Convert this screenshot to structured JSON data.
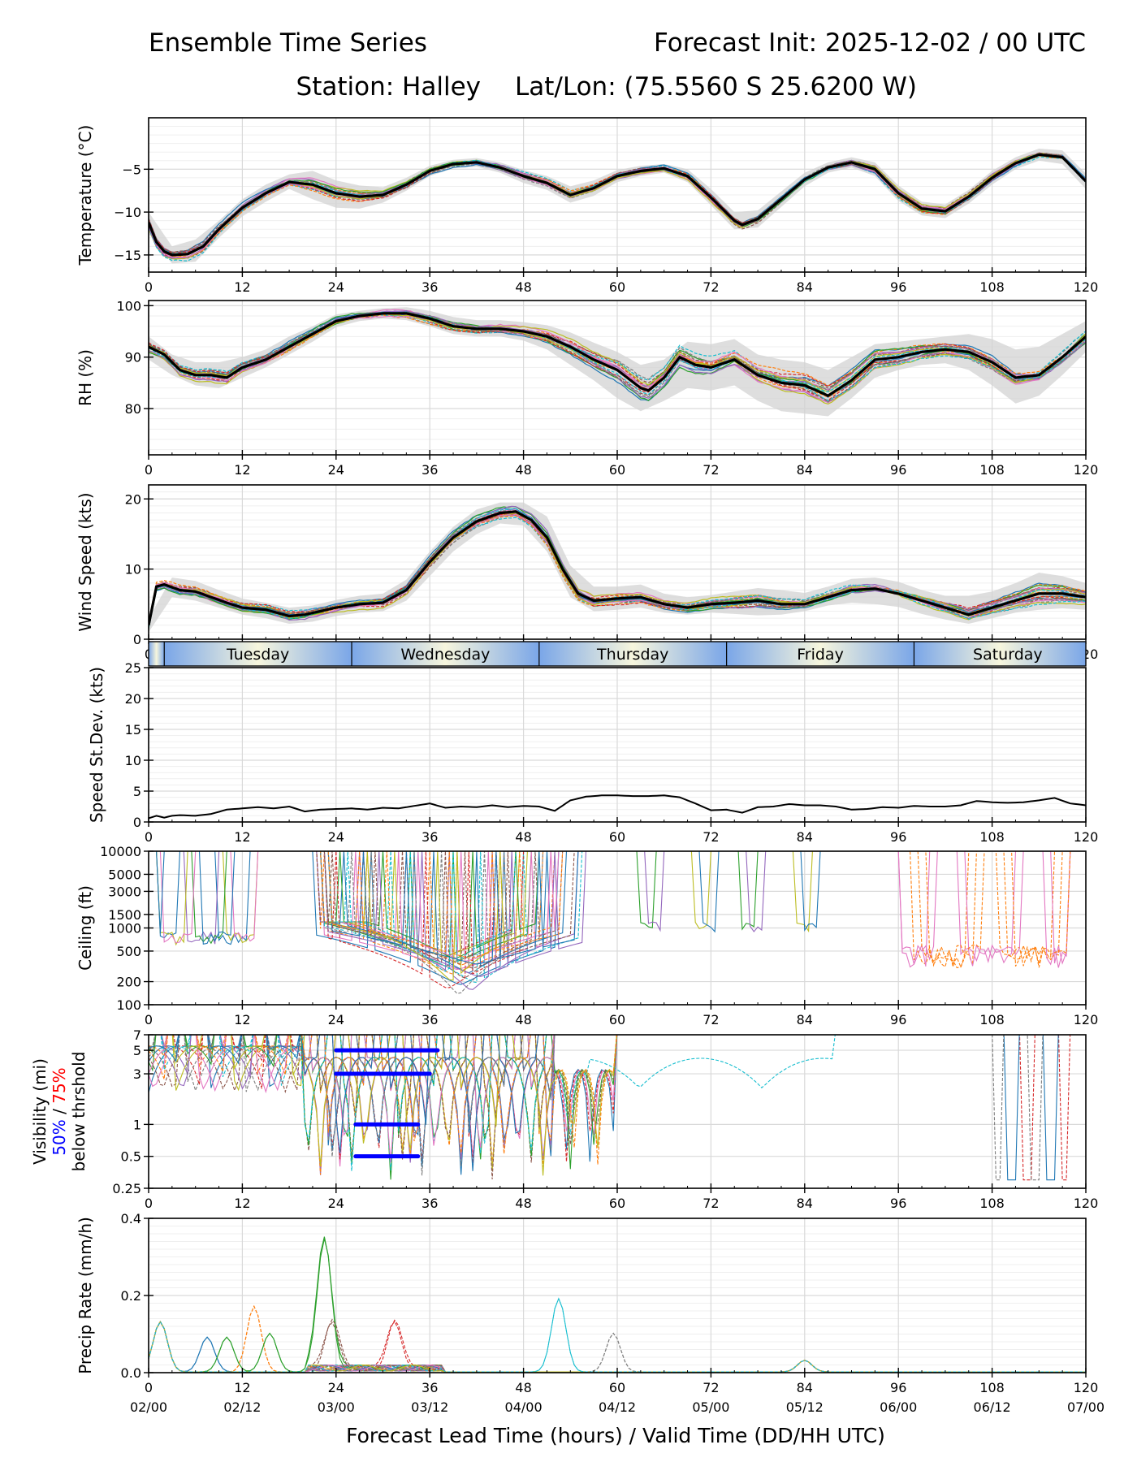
{
  "header": {
    "title_left": "Ensemble Time Series",
    "title_right": "Forecast Init: 2025-12-02 / 00 UTC",
    "station": "Station: Halley",
    "latlon": "Lat/Lon: (75.5560 S 25.6200 W)"
  },
  "colors": {
    "mean": "#000000",
    "spread": "#d3d3d3",
    "members": [
      "#1f77b4",
      "#ff7f0e",
      "#2ca02c",
      "#d62728",
      "#9467bd",
      "#8c564b",
      "#e377c2",
      "#7f7f7f",
      "#bcbd22",
      "#17becf"
    ],
    "vis50": "#0000ff",
    "vis75": "#ff0000"
  },
  "x_axis": {
    "label": "Forecast Lead Time (hours) / Valid Time (DD/HH UTC)",
    "ticks": [
      0,
      12,
      24,
      36,
      48,
      60,
      72,
      84,
      96,
      108,
      120
    ],
    "tick_labels": [
      "0",
      "12",
      "24",
      "36",
      "48",
      "60",
      "72",
      "84",
      "96",
      "108",
      "120"
    ],
    "valid_labels": [
      "02/00",
      "02/12",
      "03/00",
      "03/12",
      "04/00",
      "04/12",
      "05/00",
      "05/12",
      "06/00",
      "06/12",
      "07/00"
    ],
    "range": [
      0,
      120
    ]
  },
  "day_band": [
    "Tuesday",
    "Wednesday",
    "Thursday",
    "Friday",
    "Saturday"
  ],
  "chart_data": [
    {
      "type": "line",
      "id": "temperature",
      "ylabel": "Temperature (°C)",
      "ylim": [
        -17,
        1
      ],
      "yticks": [
        -15,
        -10,
        -5
      ],
      "ytick_labels": [
        "−15",
        "−10",
        "−5"
      ],
      "mean": {
        "x": [
          0,
          1,
          2,
          3,
          5,
          7,
          9,
          12,
          15,
          18,
          21,
          24,
          27,
          30,
          33,
          36,
          39,
          42,
          45,
          48,
          51,
          54,
          57,
          60,
          63,
          66,
          69,
          72,
          75,
          76,
          78,
          81,
          84,
          87,
          90,
          93,
          96,
          99,
          102,
          105,
          108,
          111,
          114,
          117,
          120
        ],
        "y": [
          -11.2,
          -13.5,
          -14.6,
          -15.0,
          -14.9,
          -14.0,
          -12.0,
          -9.5,
          -7.8,
          -6.5,
          -6.8,
          -7.8,
          -8.2,
          -8.0,
          -6.8,
          -5.2,
          -4.4,
          -4.2,
          -4.8,
          -5.8,
          -6.6,
          -8.0,
          -7.2,
          -5.8,
          -5.2,
          -4.9,
          -5.8,
          -8.3,
          -11.0,
          -11.5,
          -10.8,
          -8.5,
          -6.2,
          -4.8,
          -4.2,
          -5.0,
          -7.8,
          -9.6,
          -9.9,
          -8.2,
          -6.0,
          -4.3,
          -3.3,
          -3.6,
          -6.4
        ]
      },
      "spread": {
        "x": [
          0,
          3,
          6,
          9,
          12,
          15,
          18,
          21,
          24,
          27,
          30,
          33,
          36,
          39,
          42,
          45,
          48,
          51,
          54,
          57,
          60,
          63,
          66,
          69,
          72,
          75,
          78,
          81,
          84,
          87,
          90,
          93,
          96,
          99,
          102,
          105,
          108,
          111,
          114,
          117,
          120
        ],
        "lo": [
          -12.5,
          -16.0,
          -15.8,
          -13.0,
          -10.5,
          -8.8,
          -7.3,
          -8.5,
          -9.5,
          -9.6,
          -8.9,
          -7.5,
          -5.8,
          -4.9,
          -4.7,
          -5.4,
          -6.6,
          -7.4,
          -8.9,
          -8.1,
          -6.5,
          -5.8,
          -5.4,
          -6.5,
          -9.2,
          -12.0,
          -11.8,
          -9.4,
          -7.0,
          -5.4,
          -4.8,
          -5.8,
          -8.7,
          -10.4,
          -10.7,
          -9.0,
          -6.8,
          -5.0,
          -4.0,
          -4.4,
          -7.3
        ],
        "hi": [
          -10.0,
          -14.0,
          -13.2,
          -11.0,
          -8.5,
          -6.8,
          -5.6,
          -5.2,
          -6.3,
          -6.9,
          -7.1,
          -6.0,
          -4.6,
          -3.9,
          -3.7,
          -4.2,
          -5.1,
          -5.8,
          -7.0,
          -6.3,
          -5.1,
          -4.6,
          -4.4,
          -5.0,
          -7.3,
          -10.0,
          -9.8,
          -7.6,
          -5.4,
          -4.2,
          -3.6,
          -4.2,
          -6.9,
          -8.8,
          -9.1,
          -7.4,
          -5.2,
          -3.6,
          -2.6,
          -2.8,
          -5.5
        ]
      },
      "member_count": 20,
      "member_scale": 1.2
    },
    {
      "type": "line",
      "id": "rh",
      "ylabel": "RH (%)",
      "ylim": [
        71,
        101
      ],
      "yticks": [
        80,
        90,
        100
      ],
      "ytick_labels": [
        "80",
        "90",
        "100"
      ],
      "mean": {
        "x": [
          0,
          2,
          4,
          6,
          8,
          10,
          12,
          15,
          18,
          21,
          24,
          27,
          30,
          33,
          36,
          39,
          42,
          45,
          48,
          51,
          54,
          57,
          60,
          63,
          64,
          66,
          68,
          70,
          72,
          75,
          78,
          81,
          84,
          87,
          90,
          93,
          96,
          99,
          102,
          105,
          108,
          111,
          114,
          117,
          120
        ],
        "y": [
          92.0,
          90.5,
          87.5,
          86.5,
          86.5,
          86.0,
          88.0,
          89.5,
          92.0,
          94.5,
          97.0,
          98.0,
          98.5,
          98.5,
          97.5,
          96.0,
          95.5,
          95.5,
          95.0,
          94.0,
          92.0,
          89.5,
          87.5,
          84.0,
          83.5,
          86.0,
          90.0,
          88.5,
          88.0,
          89.5,
          86.5,
          85.0,
          84.5,
          82.5,
          85.5,
          89.5,
          90.0,
          91.0,
          91.5,
          91.0,
          89.0,
          86.0,
          86.5,
          90.0,
          94.0
        ]
      },
      "spread": {
        "x": [
          0,
          3,
          6,
          9,
          12,
          15,
          18,
          21,
          24,
          27,
          30,
          33,
          36,
          39,
          42,
          45,
          48,
          51,
          54,
          57,
          60,
          63,
          66,
          69,
          72,
          75,
          78,
          81,
          84,
          87,
          90,
          93,
          96,
          99,
          102,
          105,
          108,
          111,
          114,
          117,
          120
        ],
        "lo": [
          89.5,
          86.5,
          84.5,
          84.0,
          86.0,
          88.0,
          90.5,
          93.0,
          95.8,
          97.0,
          97.5,
          97.2,
          96.0,
          94.5,
          94.0,
          94.0,
          93.2,
          91.5,
          88.5,
          85.5,
          82.0,
          79.5,
          81.5,
          84.0,
          83.5,
          84.5,
          81.5,
          79.5,
          79.0,
          78.5,
          82.0,
          86.0,
          87.5,
          88.5,
          88.8,
          87.5,
          84.5,
          81.0,
          82.5,
          86.5,
          91.0
        ],
        "hi": [
          94.0,
          90.5,
          89.0,
          89.0,
          90.0,
          91.5,
          94.0,
          96.0,
          98.3,
          99.0,
          99.5,
          99.7,
          99.0,
          97.8,
          97.2,
          97.2,
          96.8,
          96.2,
          94.8,
          92.8,
          91.0,
          88.5,
          89.5,
          93.0,
          92.5,
          93.5,
          90.5,
          89.5,
          89.0,
          87.5,
          90.0,
          92.5,
          93.0,
          93.5,
          94.0,
          94.5,
          93.5,
          91.5,
          92.0,
          94.5,
          97.0
        ]
      },
      "member_count": 20,
      "member_scale": 3.0
    },
    {
      "type": "line",
      "id": "wind",
      "ylabel": "Wind Speed (kts)",
      "ylim": [
        0,
        22
      ],
      "yticks": [
        0,
        10,
        20
      ],
      "ytick_labels": [
        "0",
        "10",
        "20"
      ],
      "mean": {
        "x": [
          0,
          1,
          2,
          4,
          6,
          8,
          10,
          12,
          15,
          18,
          20,
          22,
          24,
          27,
          30,
          33,
          36,
          39,
          42,
          45,
          47,
          49,
          51,
          53,
          55,
          57,
          60,
          63,
          66,
          69,
          72,
          75,
          78,
          81,
          84,
          87,
          90,
          93,
          96,
          99,
          102,
          105,
          108,
          111,
          114,
          117,
          120
        ],
        "y": [
          2.0,
          7.5,
          7.8,
          7.0,
          6.8,
          6.0,
          5.2,
          4.5,
          4.2,
          3.3,
          3.5,
          4.0,
          4.5,
          5.0,
          5.2,
          7.0,
          11.0,
          14.5,
          16.8,
          18.0,
          18.2,
          17.0,
          14.5,
          10.0,
          6.5,
          5.5,
          5.8,
          6.0,
          5.0,
          4.5,
          5.0,
          5.2,
          5.5,
          5.0,
          5.0,
          6.0,
          7.0,
          7.2,
          6.5,
          5.5,
          4.5,
          3.5,
          4.5,
          5.5,
          6.5,
          6.5,
          6.0
        ]
      },
      "spread": {
        "x": [
          0,
          3,
          6,
          9,
          12,
          15,
          18,
          21,
          24,
          27,
          30,
          33,
          36,
          39,
          42,
          45,
          48,
          51,
          54,
          57,
          60,
          63,
          66,
          69,
          72,
          75,
          78,
          81,
          84,
          87,
          90,
          93,
          96,
          99,
          102,
          105,
          108,
          111,
          114,
          117,
          120
        ],
        "lo": [
          1.0,
          6.0,
          5.5,
          4.5,
          3.5,
          3.0,
          2.2,
          2.5,
          3.3,
          3.8,
          4.0,
          5.5,
          9.0,
          12.5,
          15.0,
          16.5,
          16.2,
          12.5,
          6.0,
          4.0,
          4.2,
          4.5,
          3.8,
          3.5,
          3.8,
          3.6,
          3.4,
          3.5,
          4.0,
          4.8,
          5.2,
          5.0,
          4.6,
          3.6,
          2.8,
          2.2,
          3.0,
          3.8,
          4.2,
          4.4,
          4.2
        ],
        "hi": [
          3.0,
          8.8,
          8.3,
          7.0,
          5.8,
          5.2,
          4.5,
          4.8,
          5.6,
          6.2,
          6.5,
          8.5,
          12.5,
          16.0,
          18.5,
          19.5,
          19.5,
          17.5,
          10.5,
          7.5,
          7.5,
          7.8,
          6.5,
          6.0,
          6.3,
          6.8,
          7.3,
          7.0,
          6.6,
          7.5,
          8.6,
          8.8,
          8.2,
          7.0,
          6.2,
          6.2,
          6.8,
          8.0,
          9.5,
          9.0,
          8.0
        ]
      },
      "member_count": 22,
      "member_scale": 2.0
    },
    {
      "type": "line",
      "id": "speed_stdev",
      "ylabel": "Speed St.Dev. (kts)",
      "ylim": [
        0,
        25
      ],
      "yticks": [
        0,
        5,
        10,
        15,
        20,
        25
      ],
      "ytick_labels": [
        "0",
        "5",
        "10",
        "15",
        "20",
        "25"
      ],
      "mean": {
        "x": [
          0,
          1,
          2,
          3,
          4,
          6,
          8,
          10,
          12,
          14,
          16,
          18,
          20,
          22,
          24,
          26,
          28,
          30,
          32,
          34,
          36,
          38,
          40,
          42,
          44,
          46,
          48,
          50,
          52,
          54,
          56,
          58,
          60,
          62,
          64,
          66,
          68,
          70,
          72,
          74,
          76,
          78,
          80,
          82,
          84,
          86,
          88,
          90,
          92,
          94,
          96,
          98,
          100,
          102,
          104,
          106,
          108,
          110,
          112,
          114,
          116,
          118,
          120
        ],
        "y": [
          0.6,
          1.0,
          0.7,
          1.0,
          1.1,
          1.0,
          1.3,
          2.0,
          2.2,
          2.4,
          2.2,
          2.5,
          1.7,
          2.0,
          2.1,
          2.2,
          2.0,
          2.3,
          2.2,
          2.6,
          3.0,
          2.3,
          2.5,
          2.4,
          2.7,
          2.4,
          2.6,
          2.5,
          1.8,
          3.5,
          4.1,
          4.3,
          4.3,
          4.2,
          4.2,
          4.3,
          4.0,
          3.0,
          1.9,
          2.0,
          1.5,
          2.4,
          2.5,
          2.9,
          2.7,
          2.7,
          2.5,
          2.0,
          2.1,
          2.4,
          2.3,
          2.6,
          2.5,
          2.5,
          2.7,
          3.4,
          3.2,
          3.1,
          3.2,
          3.5,
          3.9,
          3.0,
          2.7
        ]
      }
    },
    {
      "type": "line",
      "id": "ceiling",
      "ylabel": "Ceiling (ft)",
      "scale": "log",
      "ylim": [
        100,
        10000
      ],
      "yticks": [
        100,
        200,
        500,
        1000,
        1500,
        3000,
        5000,
        10000
      ],
      "ytick_labels": [
        "100",
        "200",
        "500",
        "1000",
        "1500",
        "3000",
        "5000",
        "10000"
      ],
      "member_count": 22
    },
    {
      "type": "line",
      "id": "visibility",
      "ylabel": "Visibility (mi)",
      "ylabel2_a": "50%",
      "ylabel2_sep": " / ",
      "ylabel2_b": "75%",
      "ylabel3": "below thrshold",
      "scale": "log",
      "ylim": [
        0.25,
        7
      ],
      "yticks": [
        0.25,
        0.5,
        1,
        3,
        5,
        7
      ],
      "ytick_labels": [
        "0.25",
        "0.5",
        "1",
        "3",
        "5",
        "7"
      ],
      "threshold_bars_50": [
        {
          "x0": 26.5,
          "x1": 34.5,
          "y": 0.5
        },
        {
          "x0": 26.5,
          "x1": 34.5,
          "y": 1
        },
        {
          "x0": 24,
          "x1": 37,
          "y": 5
        },
        {
          "x0": 24,
          "x1": 36,
          "y": 3
        }
      ],
      "threshold_bars_75": [
        {
          "x0": 26.5,
          "x1": 37,
          "y": 5
        },
        {
          "x0": 27,
          "x1": 36,
          "y": 3
        },
        {
          "x0": 24,
          "x1": 27,
          "y": 3
        }
      ],
      "member_count": 22
    },
    {
      "type": "line",
      "id": "precip",
      "ylabel": "Precip Rate (mm/h)",
      "ylim": [
        0,
        0.4
      ],
      "yticks": [
        0,
        0.2,
        0.4
      ],
      "ytick_labels": [
        "0.0",
        "0.2",
        "0.4"
      ],
      "member_count": 20
    }
  ]
}
